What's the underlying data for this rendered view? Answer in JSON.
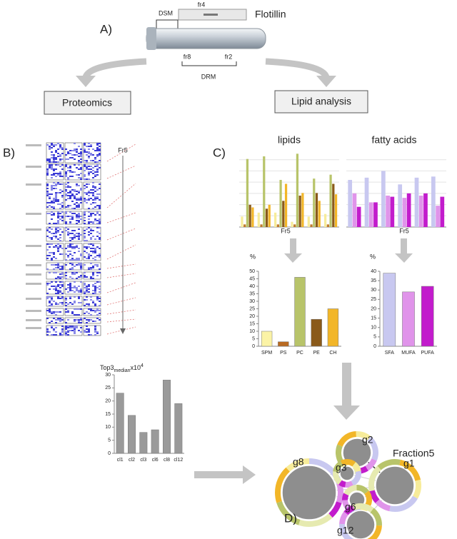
{
  "panel_labels": {
    "a": "A)",
    "b": "B)",
    "c": "C)",
    "d": "D)"
  },
  "diagram": {
    "fraction_top": "fr4",
    "protein": "Flotillin",
    "dsm": "DSM",
    "fraction_left": "fr8",
    "fraction_right": "fr2",
    "drm": "DRM"
  },
  "boxes": [
    "Proteomics",
    "Lipid analysis"
  ],
  "fr5_labels": [
    "Fr5",
    "Fr5",
    "Fr5"
  ],
  "network": {
    "title": "Fraction5",
    "nodes": [
      "g8",
      "g2",
      "g3",
      "g1",
      "g6",
      "g12"
    ]
  },
  "top3_title": {
    "text": "Top3",
    "sub": "median",
    "suffix": "x10",
    "sup": "4"
  },
  "chart_data": [
    {
      "type": "bar",
      "title": "lipids",
      "categories": [
        null,
        null,
        null,
        null,
        null,
        null
      ],
      "series": [
        {
          "color": "#f7ec9a",
          "values": [
            8,
            11,
            11,
            4,
            8,
            10
          ]
        },
        {
          "color": "#c07a2c",
          "values": [
            2,
            2,
            2,
            2,
            2,
            2
          ]
        },
        {
          "color": "#b8c46a",
          "values": [
            52,
            54,
            36,
            56,
            37,
            40
          ]
        },
        {
          "color": "#8a5a1a",
          "values": [
            17,
            14,
            20,
            24,
            26,
            33
          ]
        },
        {
          "color": "#f2b628",
          "values": [
            15,
            17,
            33,
            26,
            20,
            25
          ]
        }
      ],
      "ylim": [
        0,
        60
      ]
    },
    {
      "type": "bar",
      "title": "fatty acids",
      "categories": [
        null,
        null,
        null,
        null,
        null,
        null
      ],
      "series": [
        {
          "color": "#c8c8f0",
          "values": [
            42,
            44,
            50,
            38,
            44,
            45
          ]
        },
        {
          "color": "#e094ea",
          "values": [
            30,
            22,
            28,
            26,
            28,
            19
          ]
        },
        {
          "color": "#c21ccc",
          "values": [
            18,
            22,
            27,
            30,
            30,
            27
          ]
        }
      ],
      "ylim": [
        0,
        70
      ]
    },
    {
      "type": "bar",
      "ylabel": "%",
      "categories": [
        "SPM",
        "PS",
        "PC",
        "PE",
        "CH"
      ],
      "values": [
        10,
        3,
        46,
        18,
        25
      ],
      "colors": [
        "#fbf3a6",
        "#b86a22",
        "#b8c46a",
        "#8a5a1a",
        "#f2b628"
      ],
      "ylim": [
        0,
        50
      ],
      "yticks": [
        0,
        5,
        10,
        15,
        20,
        25,
        30,
        35,
        40,
        45,
        50
      ]
    },
    {
      "type": "bar",
      "ylabel": "%",
      "categories": [
        "SFA",
        "MUFA",
        "PUFA"
      ],
      "values": [
        39,
        29,
        32
      ],
      "colors": [
        "#c8c8f0",
        "#e094ea",
        "#c21ccc"
      ],
      "ylim": [
        0,
        40
      ],
      "yticks": [
        0,
        5,
        10,
        15,
        20,
        25,
        30,
        35,
        40
      ]
    },
    {
      "type": "bar",
      "categories": [
        "cl1",
        "cl2",
        "cl3",
        "cl6",
        "cl8",
        "cl12"
      ],
      "values": [
        23,
        14.5,
        8,
        9,
        28,
        19
      ],
      "color": "#9a9a9a",
      "ylim": [
        0,
        30
      ],
      "yticks": [
        0,
        5,
        10,
        15,
        20,
        25,
        30
      ]
    }
  ]
}
